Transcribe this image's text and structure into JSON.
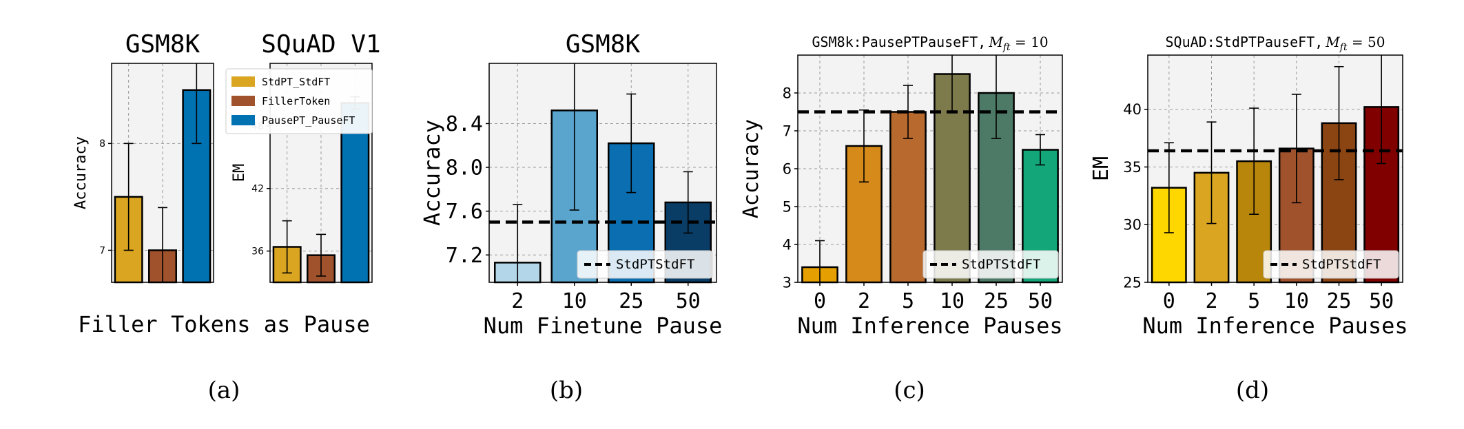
{
  "figure": {
    "subcaptions": [
      "(a)",
      "(b)",
      "(c)",
      "(d)"
    ],
    "panel_a_xlabel": "Filler Tokens as Pause"
  },
  "colors": {
    "panel_a": [
      "#DAA520",
      "#A0522D",
      "#0072B2"
    ],
    "panel_b": [
      "#B3D7E8",
      "#5AA5CE",
      "#0A6EB0",
      "#0A3D66"
    ],
    "panel_c": [
      "#E69F00",
      "#D58A1A",
      "#B8692E",
      "#7D7A4B",
      "#4D7A66",
      "#12A678"
    ],
    "panel_d": [
      "#FFD700",
      "#DAA520",
      "#B8860B",
      "#A0522D",
      "#8B4513",
      "#800000"
    ],
    "axes_bg": "#f3f3f3",
    "grid": "#9a9a9a"
  },
  "chart_data": [
    {
      "id": "a1",
      "type": "bar",
      "title": "GSM8K",
      "ylabel": "Accuracy",
      "xlabel": "",
      "categories": [
        "StdPT_StdFT",
        "FillerToken",
        "PausePT_PauseFT"
      ],
      "values": [
        7.5,
        7.0,
        8.5
      ],
      "errors": [
        0.5,
        0.4,
        0.5
      ],
      "ylim": [
        6.7,
        8.75
      ],
      "yticks": [
        7,
        8
      ],
      "ytick_labels": [
        "7",
        "8"
      ],
      "grid": true
    },
    {
      "id": "a2",
      "type": "bar",
      "title": "SQuAD V1",
      "ylabel": "EM",
      "xlabel": "",
      "categories": [
        "StdPT_StdFT",
        "FillerToken",
        "PausePT_PauseFT"
      ],
      "values": [
        36.4,
        35.6,
        50.2
      ],
      "errors": [
        2.5,
        2.0,
        0.6
      ],
      "ylim": [
        33.0,
        54.0
      ],
      "yticks": [
        36,
        42,
        48
      ],
      "ytick_labels": [
        "36",
        "42",
        "48"
      ],
      "legend": [
        "StdPT_StdFT",
        "FillerToken",
        "PausePT_PauseFT"
      ],
      "legend_position": "top-left",
      "grid": true
    },
    {
      "id": "b",
      "type": "bar",
      "title": "GSM8K",
      "ylabel": "Accuracy",
      "xlabel": "Num Finetune Pause",
      "categories": [
        "2",
        "10",
        "25",
        "50"
      ],
      "values": [
        7.13,
        8.52,
        8.22,
        7.68
      ],
      "errors": [
        0.53,
        0.91,
        0.45,
        0.28
      ],
      "ylim": [
        6.95,
        8.95
      ],
      "yticks": [
        7.2,
        7.6,
        8.0,
        8.4
      ],
      "ytick_labels": [
        "7.2",
        "7.6",
        "8.0",
        "8.4"
      ],
      "baseline": {
        "value": 7.5,
        "label": "StdPTStdFT"
      },
      "legend_position": "bottom-right",
      "grid": true
    },
    {
      "id": "c",
      "type": "bar",
      "title": "GSM8k:PausePTPauseFT,",
      "title_math": "M",
      "title_math_sub": "ft",
      "title_suffix": " = 10",
      "ylabel": "Accuracy",
      "xlabel": "Num Inference Pauses",
      "categories": [
        "0",
        "2",
        "5",
        "10",
        "25",
        "50"
      ],
      "values": [
        3.4,
        6.6,
        7.5,
        8.5,
        8.0,
        6.5
      ],
      "errors": [
        0.7,
        0.95,
        0.7,
        1.0,
        1.2,
        0.4
      ],
      "ylim": [
        3.0,
        9.0
      ],
      "yticks": [
        3,
        4,
        5,
        6,
        7,
        8
      ],
      "ytick_labels": [
        "3",
        "4",
        "5",
        "6",
        "7",
        "8"
      ],
      "baseline": {
        "value": 7.5,
        "label": "StdPTStdFT"
      },
      "legend_position": "bottom-right",
      "grid": true
    },
    {
      "id": "d",
      "type": "bar",
      "title": "SQuAD:StdPTPauseFT,",
      "title_math": "M",
      "title_math_sub": "ft",
      "title_suffix": " = 50",
      "ylabel": "EM",
      "xlabel": "Num Inference Pauses",
      "categories": [
        "0",
        "2",
        "5",
        "10",
        "25",
        "50"
      ],
      "values": [
        33.2,
        34.5,
        35.5,
        36.6,
        38.8,
        40.2
      ],
      "errors": [
        3.9,
        4.4,
        4.6,
        4.7,
        4.9,
        4.9
      ],
      "ylim": [
        25.0,
        44.7
      ],
      "yticks": [
        25,
        30,
        35,
        40
      ],
      "ytick_labels": [
        "25",
        "30",
        "35",
        "40"
      ],
      "baseline": {
        "value": 36.4,
        "label": "StdPTStdFT"
      },
      "legend_position": "bottom-right",
      "grid": true
    }
  ]
}
